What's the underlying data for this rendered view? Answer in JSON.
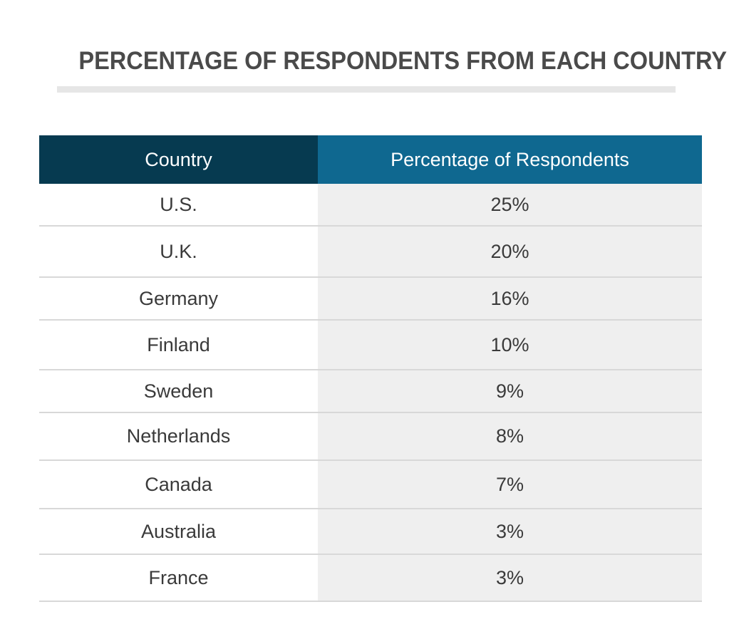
{
  "chart_data": {
    "type": "table",
    "title": "PERCENTAGE OF RESPONDENTS FROM EACH COUNTRY",
    "columns": [
      "Country",
      "Percentage of Respondents"
    ],
    "rows": [
      {
        "country": "U.S.",
        "percentage": "25%"
      },
      {
        "country": "U.K.",
        "percentage": "20%"
      },
      {
        "country": "Germany",
        "percentage": "16%"
      },
      {
        "country": "Finland",
        "percentage": "10%"
      },
      {
        "country": "Sweden",
        "percentage": "9%"
      },
      {
        "country": "Netherlands",
        "percentage": "8%"
      },
      {
        "country": "Canada",
        "percentage": "7%"
      },
      {
        "country": "Australia",
        "percentage": "3%"
      },
      {
        "country": "France",
        "percentage": "3%"
      }
    ],
    "colors": {
      "header_country": "#063a50",
      "header_percentage": "#0f6890",
      "percentage_column_bg": "#efefef",
      "title_text": "#4a4a4a"
    }
  }
}
